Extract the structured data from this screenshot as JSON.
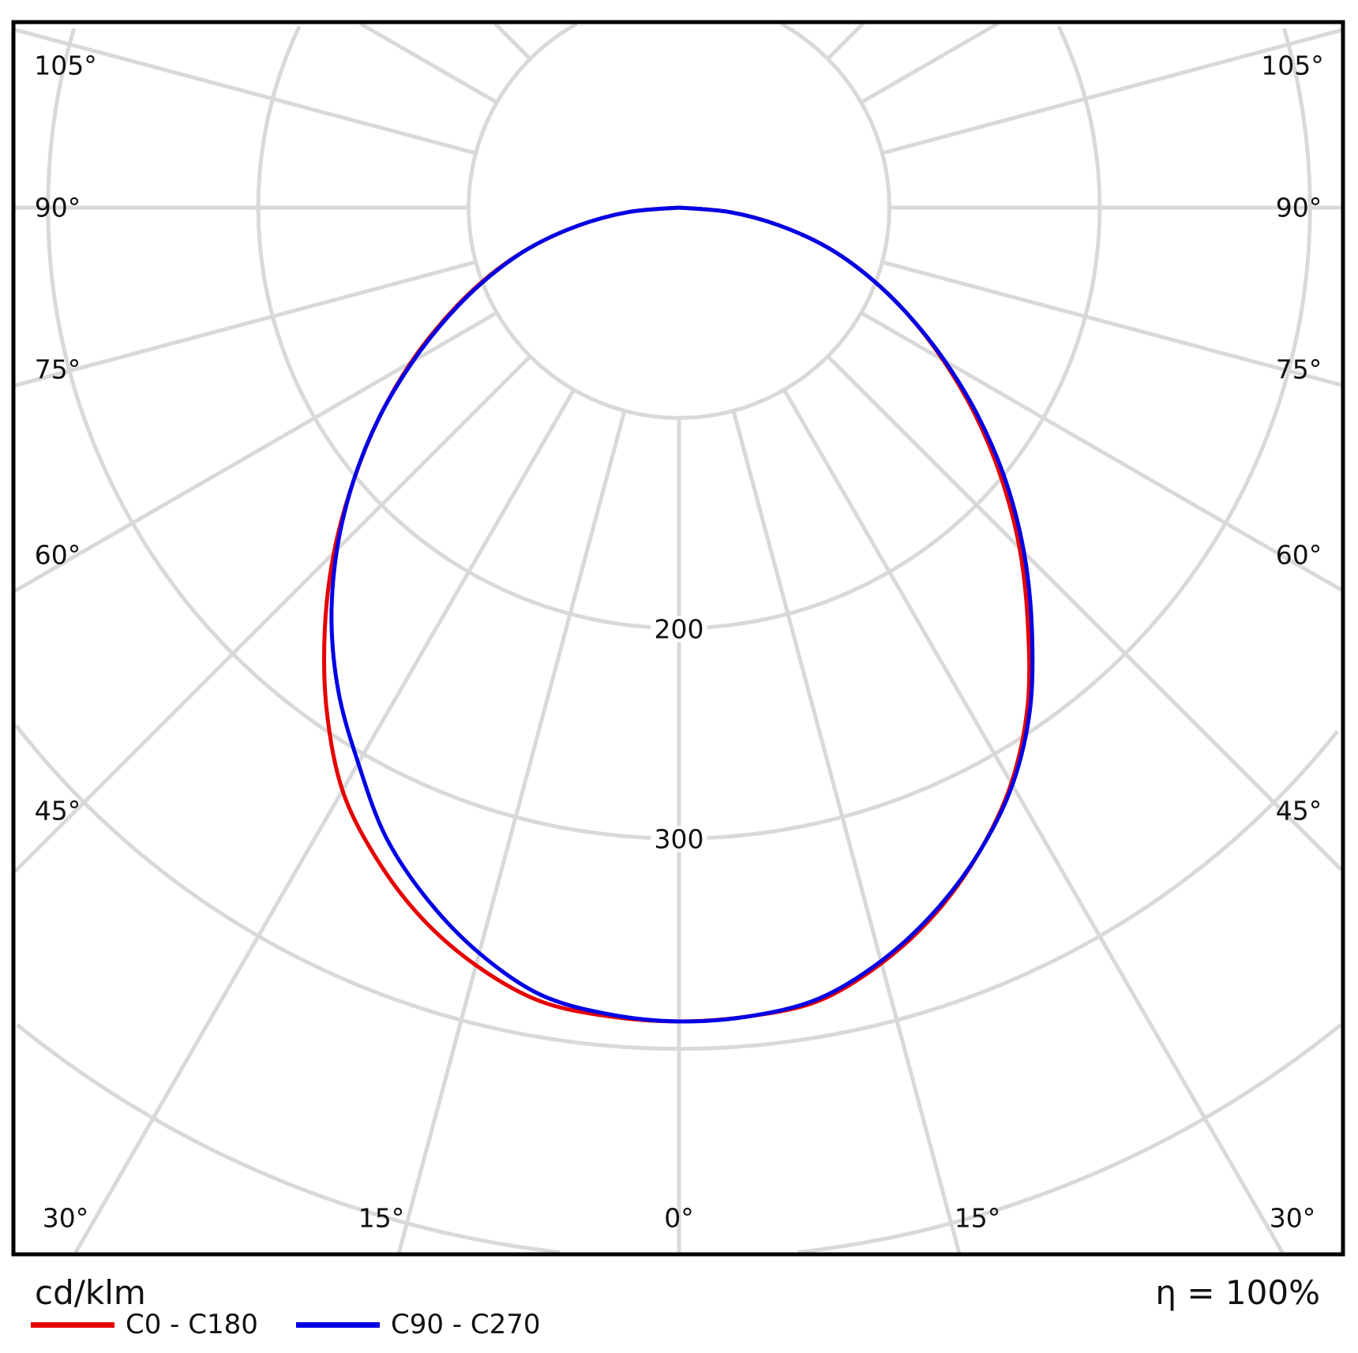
{
  "chart_data": {
    "type": "polar",
    "unit_label": "cd/klm",
    "efficiency_label": "η = 100%",
    "radial_ticks": [
      100,
      200,
      300,
      400,
      500,
      600
    ],
    "radial_tick_labels": [
      "200",
      "300"
    ],
    "angle_labels_left": [
      "105°",
      "90°",
      "75°",
      "60°",
      "45°"
    ],
    "angle_labels_right": [
      "105°",
      "90°",
      "75°",
      "60°",
      "45°"
    ],
    "angle_labels_bottom": [
      "30°",
      "15°",
      "0°",
      "15°",
      "30°"
    ],
    "angles_deg": [
      0,
      5,
      10,
      15,
      20,
      25,
      30,
      35,
      40,
      45,
      50,
      55,
      60,
      65,
      70,
      75,
      80,
      85,
      90
    ],
    "series": [
      {
        "name": "C0 - C180",
        "color": "#e60000",
        "right_values": [
          387,
          386,
          383,
          372,
          357,
          338,
          316,
          289,
          258,
          229,
          200,
          172,
          145,
          120,
          96,
          73,
          48,
          24,
          0
        ],
        "left_values": [
          387,
          386,
          383,
          373,
          359,
          341,
          320,
          292,
          262,
          232,
          202,
          174,
          147,
          121,
          97,
          73,
          48,
          24,
          0
        ]
      },
      {
        "name": "C90 - C270",
        "color": "#0000e6",
        "right_values": [
          387,
          386,
          382,
          371,
          356,
          338,
          317,
          291,
          261,
          232,
          203,
          174,
          146,
          120,
          96,
          73,
          48,
          24,
          0
        ],
        "left_values": [
          387,
          385,
          380,
          367,
          350,
          330,
          305,
          282,
          257,
          230,
          202,
          174,
          146,
          120,
          96,
          73,
          48,
          24,
          0
        ]
      }
    ],
    "grid": true,
    "legend_position": "bottom-left"
  }
}
